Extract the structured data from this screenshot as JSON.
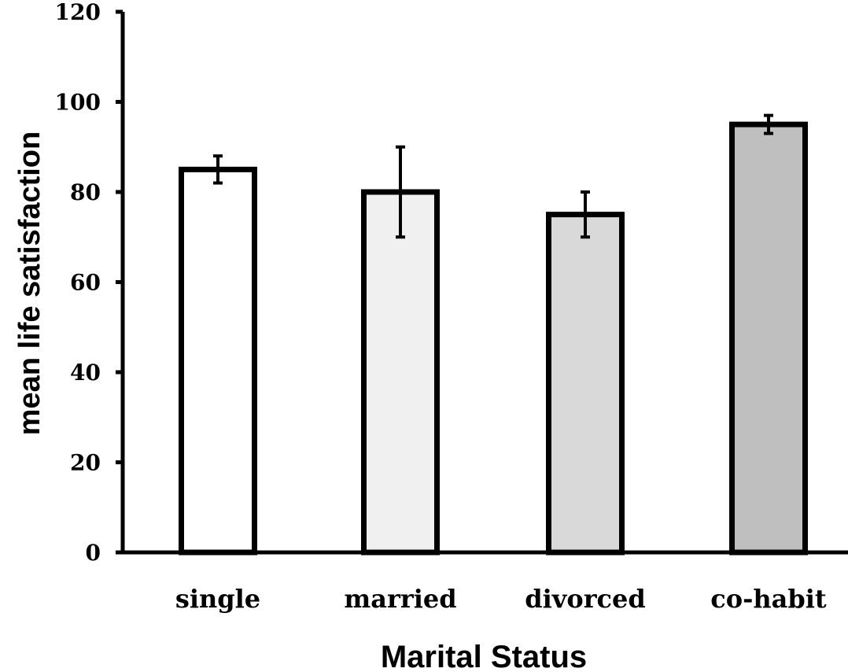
{
  "chart_data": {
    "type": "bar",
    "title": "",
    "xlabel": "Marital Status",
    "ylabel": "mean life satisfaction",
    "categories": [
      "single",
      "married",
      "divorced",
      "co-habit"
    ],
    "values": [
      85,
      80,
      75,
      95
    ],
    "error_low": [
      82,
      70,
      70,
      93
    ],
    "error_high": [
      88,
      90,
      80,
      97
    ],
    "ylim": [
      0,
      120
    ],
    "yticks": [
      "0",
      "20",
      "40",
      "60",
      "80",
      "100",
      "120"
    ],
    "grid": false,
    "bar_colors": [
      "#ffffff",
      "#f0f0f0",
      "#d9d9d9",
      "#bfbfbf"
    ],
    "edge_color": "#000000"
  }
}
